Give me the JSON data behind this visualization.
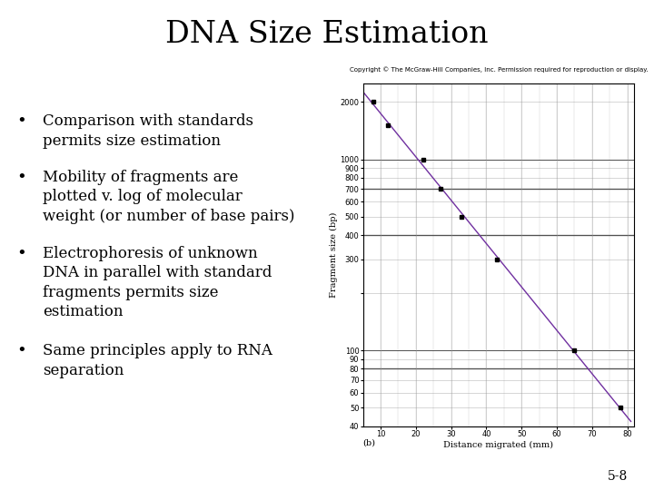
{
  "title": "DNA Size Estimation",
  "title_fontsize": 24,
  "title_font": "serif",
  "bullet_points": [
    "Comparison with standards\npermits size estimation",
    "Mobility of fragments are\nplotted v. log of molecular\nweight (or number of base pairs)",
    "Electrophoresis of unknown\nDNA in parallel with standard\nfragments permits size\nestimation",
    "Same principles apply to RNA\nseparation"
  ],
  "bullet_fontsize": 12,
  "bullet_font": "serif",
  "copyright_text": "Copyright © The McGraw-Hill Companies, Inc. Permission required for reproduction or display.",
  "copyright_fontsize": 5.0,
  "xlabel": "Distance migrated (mm)",
  "ylabel": "Fragment size (bp)",
  "xlabel_fontsize": 7,
  "ylabel_fontsize": 7,
  "label_b": "(b)",
  "x_data": [
    8,
    12,
    22,
    27,
    33,
    43,
    65,
    78
  ],
  "y_data": [
    2000,
    1500,
    1000,
    700,
    500,
    300,
    100,
    50
  ],
  "line_color": "#7030A0",
  "marker_color": "black",
  "marker_size": 3,
  "xlim": [
    5,
    82
  ],
  "ylim": [
    40,
    2500
  ],
  "x_ticks": [
    10,
    20,
    30,
    40,
    50,
    60,
    70,
    80
  ],
  "y_ticks_major": [
    40,
    50,
    60,
    70,
    80,
    90,
    100,
    200,
    300,
    400,
    500,
    600,
    700,
    800,
    900,
    1000,
    2000
  ],
  "y_labels": [
    "40",
    "50",
    "60",
    "70",
    "80",
    "90",
    "100",
    "",
    "300",
    "400",
    "500",
    "600",
    "700",
    "800",
    "900",
    "1000",
    "2000"
  ],
  "bold_hlines": [
    80,
    400,
    700
  ],
  "grid_color": "#999999",
  "bold_line_color": "#222222",
  "background_color": "#ffffff",
  "page_num": "5-8"
}
